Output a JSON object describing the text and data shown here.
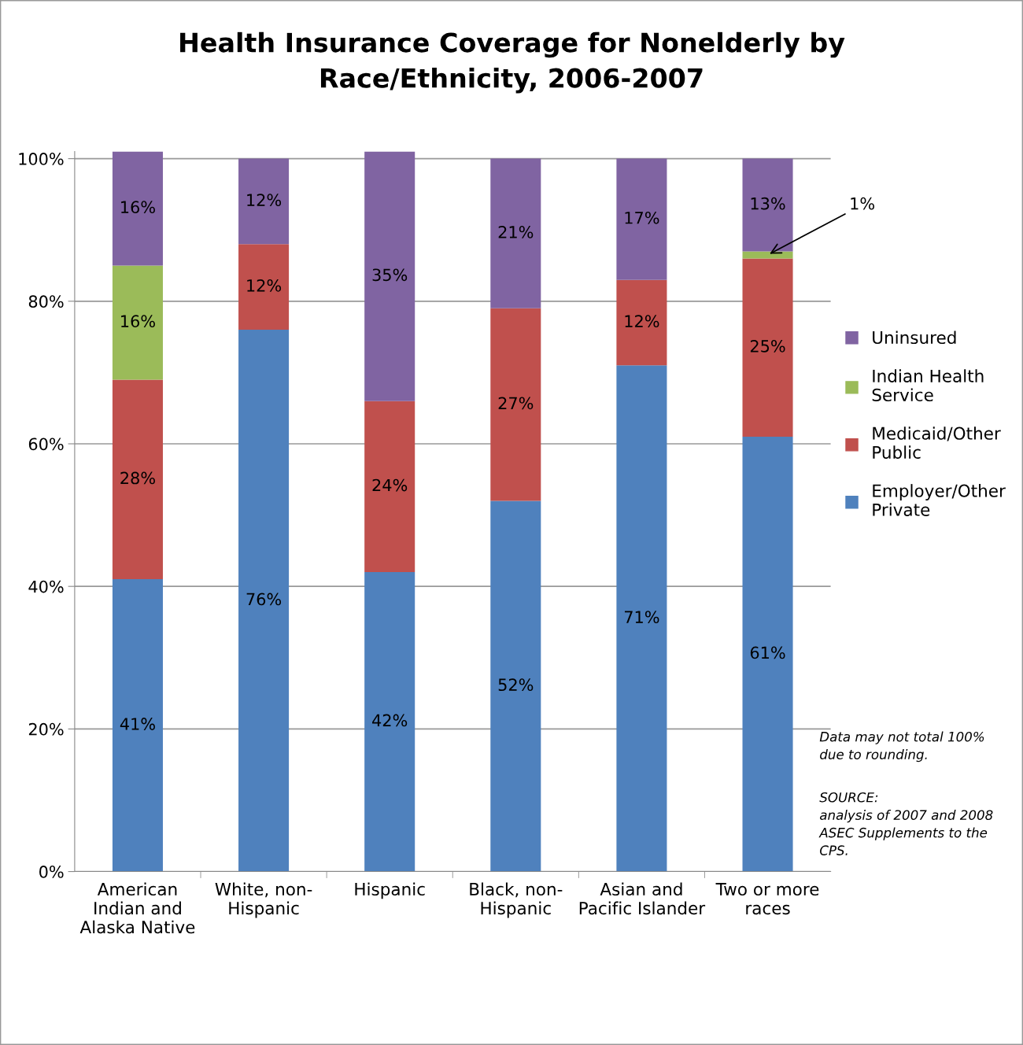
{
  "chart_data": {
    "type": "bar",
    "stacked": true,
    "title": "Health Insurance Coverage for Nonelderly by\nRace/Ethnicity, 2006-2007",
    "categories": [
      "American\nIndian and\nAlaska Native",
      "White, non-\nHispanic",
      "Hispanic",
      "Black, non-\nHispanic",
      "Asian and\nPacific Islander",
      "Two or more\nraces"
    ],
    "series": [
      {
        "name": "Employer/Other\nPrivate",
        "color": "#4f81bd",
        "values": [
          41,
          76,
          42,
          52,
          71,
          61
        ],
        "value_labels": [
          "41%",
          "76%",
          "42%",
          "52%",
          "71%",
          "61%"
        ]
      },
      {
        "name": "Medicaid/Other\nPublic",
        "color": "#c0504d",
        "values": [
          28,
          12,
          24,
          27,
          12,
          25
        ],
        "value_labels": [
          "28%",
          "12%",
          "24%",
          "27%",
          "12%",
          "25%"
        ]
      },
      {
        "name": "Indian Health\nService",
        "color": "#9bbb59",
        "values": [
          16,
          null,
          null,
          null,
          null,
          1
        ],
        "value_labels": [
          "16%",
          null,
          null,
          null,
          null,
          null
        ]
      },
      {
        "name": "Uninsured",
        "color": "#8064a2",
        "values": [
          16,
          12,
          35,
          21,
          17,
          13
        ],
        "value_labels": [
          "16%",
          "12%",
          "35%",
          "21%",
          "17%",
          "13%"
        ]
      }
    ],
    "ylim": [
      0,
      101
    ],
    "yticks": [
      {
        "value": 0,
        "label": "0%"
      },
      {
        "value": 20,
        "label": "20%"
      },
      {
        "value": 40,
        "label": "40%"
      },
      {
        "value": 60,
        "label": "60%"
      },
      {
        "value": 80,
        "label": "80%"
      },
      {
        "value": 100,
        "label": "100%"
      }
    ],
    "grid": "y",
    "legend": "right",
    "annotations": [
      {
        "text": "1%",
        "x": "Two or more\nraces",
        "y": 86.5
      },
      "Data may not total 100%\ndue to rounding.",
      "SOURCE:\nanalysis of 2007 and 2008\nASEC Supplements to the\nCPS."
    ]
  }
}
